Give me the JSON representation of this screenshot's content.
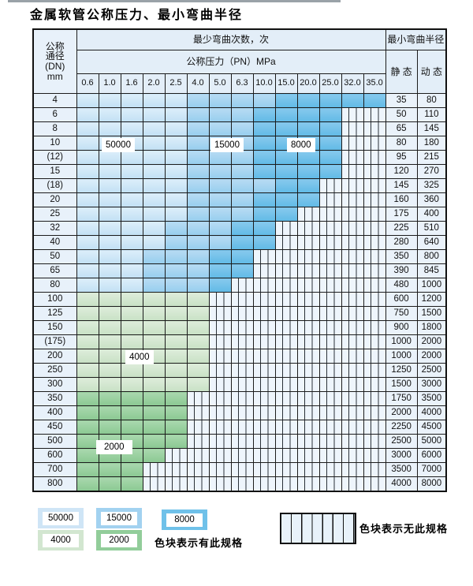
{
  "page": {
    "title": "金属软管公称压力、最小弯曲半径"
  },
  "table": {
    "corner": {
      "line1": "公称",
      "line2": "通径",
      "line3": "(DN)",
      "line4": "mm"
    },
    "bend_header": "最少弯曲次数，次",
    "pressure_header": "公称压力（PN）MPa",
    "radius_header": "最小弯曲半径",
    "static_label": "静 态",
    "dynamic_label": "动 态",
    "pressure_columns": [
      "0.6",
      "1.0",
      "1.6",
      "2.0",
      "2.5",
      "4.0",
      "5.0",
      "6.3",
      "10.0",
      "15.0",
      "20.0",
      "25.0",
      "32.0",
      "35.0"
    ],
    "cell_legend_meaning": {
      "l": "50000",
      "m": "15000",
      "d": "8000",
      "g": "4000",
      "G": "2000",
      "x": "no-spec"
    },
    "rows": [
      {
        "dn": "4",
        "static": "35",
        "dynamic": "80",
        "cells": [
          "l",
          "l",
          "l",
          "l",
          "l",
          "m",
          "m",
          "m",
          "m",
          "d",
          "d",
          "d",
          "d",
          "d"
        ]
      },
      {
        "dn": "6",
        "static": "50",
        "dynamic": "110",
        "cells": [
          "l",
          "l",
          "l",
          "l",
          "l",
          "m",
          "m",
          "m",
          "d",
          "d",
          "d",
          "d",
          "x",
          "x"
        ]
      },
      {
        "dn": "8",
        "static": "65",
        "dynamic": "145",
        "cells": [
          "l",
          "l",
          "l",
          "l",
          "l",
          "m",
          "m",
          "m",
          "d",
          "d",
          "d",
          "d",
          "x",
          "x"
        ]
      },
      {
        "dn": "10",
        "static": "80",
        "dynamic": "180",
        "cells": [
          "l",
          "l",
          "l",
          "l",
          "l",
          "m",
          "m",
          "m",
          "d",
          "d",
          "d",
          "d",
          "x",
          "x"
        ]
      },
      {
        "dn": "(12)",
        "static": "95",
        "dynamic": "215",
        "cells": [
          "l",
          "l",
          "l",
          "l",
          "l",
          "m",
          "m",
          "m",
          "d",
          "d",
          "d",
          "d",
          "x",
          "x"
        ]
      },
      {
        "dn": "15",
        "static": "120",
        "dynamic": "270",
        "cells": [
          "l",
          "l",
          "l",
          "l",
          "l",
          "m",
          "m",
          "m",
          "d",
          "d",
          "d",
          "d",
          "x",
          "x"
        ]
      },
      {
        "dn": "(18)",
        "static": "145",
        "dynamic": "325",
        "cells": [
          "l",
          "l",
          "l",
          "l",
          "l",
          "m",
          "m",
          "m",
          "m",
          "d",
          "d",
          "x",
          "x",
          "x"
        ]
      },
      {
        "dn": "20",
        "static": "160",
        "dynamic": "360",
        "cells": [
          "l",
          "l",
          "l",
          "l",
          "l",
          "m",
          "m",
          "m",
          "d",
          "d",
          "d",
          "x",
          "x",
          "x"
        ]
      },
      {
        "dn": "25",
        "static": "175",
        "dynamic": "400",
        "cells": [
          "l",
          "l",
          "l",
          "l",
          "l",
          "m",
          "m",
          "m",
          "d",
          "d",
          "x",
          "x",
          "x",
          "x"
        ]
      },
      {
        "dn": "32",
        "static": "225",
        "dynamic": "510",
        "cells": [
          "l",
          "l",
          "l",
          "l",
          "m",
          "m",
          "m",
          "d",
          "d",
          "x",
          "x",
          "x",
          "x",
          "x"
        ]
      },
      {
        "dn": "40",
        "static": "280",
        "dynamic": "640",
        "cells": [
          "l",
          "l",
          "l",
          "l",
          "m",
          "m",
          "m",
          "d",
          "d",
          "x",
          "x",
          "x",
          "x",
          "x"
        ]
      },
      {
        "dn": "50",
        "static": "350",
        "dynamic": "800",
        "cells": [
          "l",
          "l",
          "l",
          "m",
          "m",
          "m",
          "d",
          "d",
          "x",
          "x",
          "x",
          "x",
          "x",
          "x"
        ]
      },
      {
        "dn": "65",
        "static": "390",
        "dynamic": "845",
        "cells": [
          "l",
          "l",
          "l",
          "m",
          "m",
          "m",
          "d",
          "d",
          "x",
          "x",
          "x",
          "x",
          "x",
          "x"
        ]
      },
      {
        "dn": "80",
        "static": "480",
        "dynamic": "1000",
        "cells": [
          "l",
          "l",
          "l",
          "m",
          "m",
          "m",
          "d",
          "x",
          "x",
          "x",
          "x",
          "x",
          "x",
          "x"
        ]
      },
      {
        "dn": "100",
        "static": "600",
        "dynamic": "1200",
        "cells": [
          "g",
          "g",
          "g",
          "g",
          "g",
          "g",
          "x",
          "x",
          "x",
          "x",
          "x",
          "x",
          "x",
          "x"
        ]
      },
      {
        "dn": "125",
        "static": "750",
        "dynamic": "1500",
        "cells": [
          "g",
          "g",
          "g",
          "g",
          "g",
          "g",
          "x",
          "x",
          "x",
          "x",
          "x",
          "x",
          "x",
          "x"
        ]
      },
      {
        "dn": "150",
        "static": "900",
        "dynamic": "1800",
        "cells": [
          "g",
          "g",
          "g",
          "g",
          "g",
          "g",
          "x",
          "x",
          "x",
          "x",
          "x",
          "x",
          "x",
          "x"
        ]
      },
      {
        "dn": "(175)",
        "static": "1000",
        "dynamic": "2000",
        "cells": [
          "g",
          "g",
          "g",
          "g",
          "g",
          "g",
          "x",
          "x",
          "x",
          "x",
          "x",
          "x",
          "x",
          "x"
        ]
      },
      {
        "dn": "200",
        "static": "1000",
        "dynamic": "2000",
        "cells": [
          "g",
          "g",
          "g",
          "g",
          "g",
          "g",
          "x",
          "x",
          "x",
          "x",
          "x",
          "x",
          "x",
          "x"
        ]
      },
      {
        "dn": "250",
        "static": "1250",
        "dynamic": "2500",
        "cells": [
          "g",
          "g",
          "g",
          "g",
          "g",
          "g",
          "x",
          "x",
          "x",
          "x",
          "x",
          "x",
          "x",
          "x"
        ]
      },
      {
        "dn": "300",
        "static": "1500",
        "dynamic": "3000",
        "cells": [
          "g",
          "g",
          "g",
          "g",
          "g",
          "g",
          "x",
          "x",
          "x",
          "x",
          "x",
          "x",
          "x",
          "x"
        ]
      },
      {
        "dn": "350",
        "static": "1750",
        "dynamic": "3500",
        "cells": [
          "G",
          "G",
          "G",
          "G",
          "G",
          "x",
          "x",
          "x",
          "x",
          "x",
          "x",
          "x",
          "x",
          "x"
        ]
      },
      {
        "dn": "400",
        "static": "2000",
        "dynamic": "4000",
        "cells": [
          "G",
          "G",
          "G",
          "G",
          "G",
          "x",
          "x",
          "x",
          "x",
          "x",
          "x",
          "x",
          "x",
          "x"
        ]
      },
      {
        "dn": "450",
        "static": "2250",
        "dynamic": "4500",
        "cells": [
          "G",
          "G",
          "G",
          "G",
          "G",
          "x",
          "x",
          "x",
          "x",
          "x",
          "x",
          "x",
          "x",
          "x"
        ]
      },
      {
        "dn": "500",
        "static": "2500",
        "dynamic": "5000",
        "cells": [
          "G",
          "G",
          "G",
          "G",
          "G",
          "x",
          "x",
          "x",
          "x",
          "x",
          "x",
          "x",
          "x",
          "x"
        ]
      },
      {
        "dn": "600",
        "static": "3000",
        "dynamic": "6000",
        "cells": [
          "G",
          "G",
          "G",
          "G",
          "x",
          "x",
          "x",
          "x",
          "x",
          "x",
          "x",
          "x",
          "x",
          "x"
        ]
      },
      {
        "dn": "700",
        "static": "3500",
        "dynamic": "7000",
        "cells": [
          "G",
          "G",
          "G",
          "x",
          "x",
          "x",
          "x",
          "x",
          "x",
          "x",
          "x",
          "x",
          "x",
          "x"
        ]
      },
      {
        "dn": "800",
        "static": "4000",
        "dynamic": "8000",
        "cells": [
          "G",
          "G",
          "G",
          "x",
          "x",
          "x",
          "x",
          "x",
          "x",
          "x",
          "x",
          "x",
          "x",
          "x"
        ]
      }
    ]
  },
  "overlays": {
    "label_50000": "50000",
    "label_15000": "15000",
    "label_8000": "8000",
    "label_4000": "4000",
    "label_2000": "2000"
  },
  "legend": {
    "items": [
      {
        "value": "50000",
        "color": "#cfe5f6"
      },
      {
        "value": "15000",
        "color": "#a2d2f0"
      },
      {
        "value": "8000",
        "color": "#6fc1e9"
      },
      {
        "value": "4000",
        "color": "#d2e6d0"
      },
      {
        "value": "2000",
        "color": "#92cd9a"
      }
    ],
    "has_spec_text": "色块表示有此规格",
    "no_spec_text": "色块表示无此规格"
  }
}
